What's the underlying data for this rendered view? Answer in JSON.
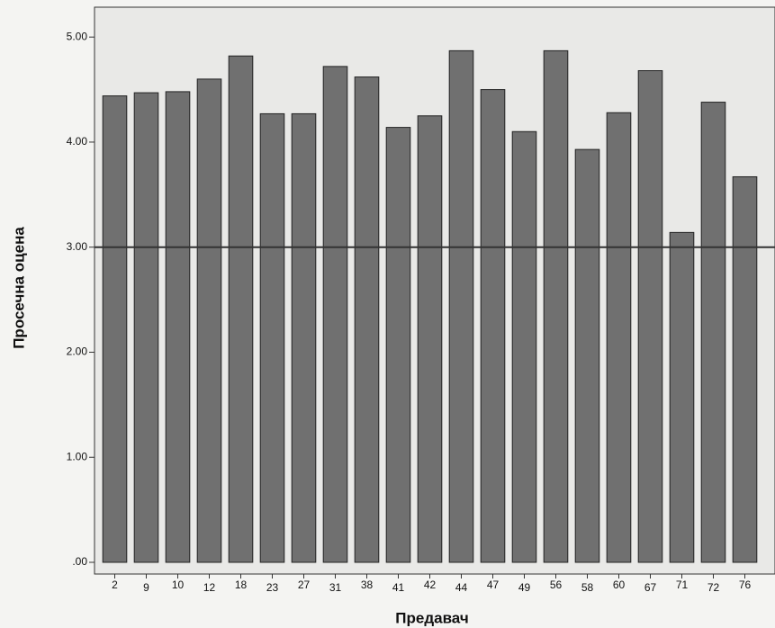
{
  "chart_data": {
    "type": "bar",
    "x_label": "Предавач",
    "y_label": "Просечна оцена",
    "categories": [
      "2",
      "9",
      "10",
      "12",
      "18",
      "23",
      "27",
      "31",
      "38",
      "41",
      "42",
      "44",
      "47",
      "49",
      "56",
      "58",
      "60",
      "67",
      "71",
      "72",
      "76"
    ],
    "values": [
      4.44,
      4.47,
      4.48,
      4.6,
      4.82,
      4.27,
      4.27,
      4.72,
      4.62,
      4.14,
      4.25,
      4.87,
      4.5,
      4.1,
      4.87,
      3.93,
      4.28,
      4.68,
      3.14,
      4.38,
      3.67
    ],
    "color": "#707070",
    "ylim": [
      0,
      5.25
    ],
    "yticks": [
      {
        "value": 0,
        "label": ".00"
      },
      {
        "value": 1,
        "label": "1.00"
      },
      {
        "value": 2,
        "label": "2.00"
      },
      {
        "value": 3,
        "label": "3.00"
      },
      {
        "value": 4,
        "label": "4.00"
      },
      {
        "value": 5,
        "label": "5.00"
      }
    ],
    "reference_line": 3
  }
}
